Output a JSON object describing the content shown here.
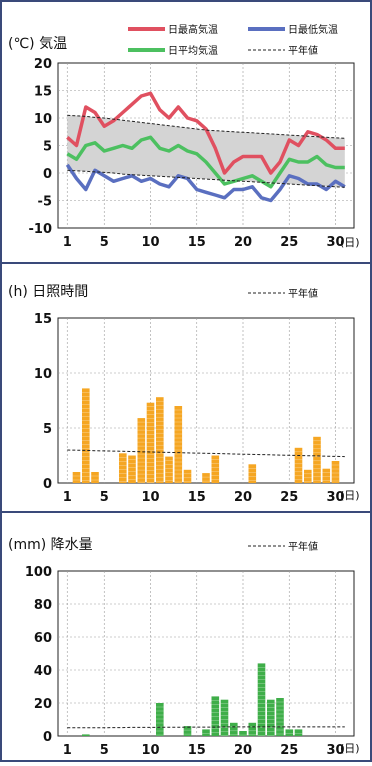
{
  "colors": {
    "frame": "#3a4a7a",
    "max": "#e05060",
    "min": "#5a6fc0",
    "avg": "#4cc060",
    "normal": "#222222",
    "range_fill": "#d4d4d4",
    "sun_bar": "#f5a623",
    "rain_bar": "#3fae49",
    "grid": "#9a9a9a"
  },
  "x_unit": "(日)",
  "chart_data": [
    {
      "type": "line",
      "title": "(℃) 気温",
      "ylim": [
        -10,
        20
      ],
      "yticks": [
        20,
        15,
        10,
        5,
        0,
        -5,
        -10
      ],
      "xticks": [
        1,
        5,
        10,
        15,
        20,
        25,
        30
      ],
      "xlim": [
        0,
        32
      ],
      "legend": [
        "日最高気温",
        "日最低気温",
        "日平均気温",
        "平年値"
      ],
      "x": [
        1,
        2,
        3,
        4,
        5,
        6,
        7,
        8,
        9,
        10,
        11,
        12,
        13,
        14,
        15,
        16,
        17,
        18,
        19,
        20,
        21,
        22,
        23,
        24,
        25,
        26,
        27,
        28,
        29,
        30,
        31
      ],
      "series": [
        {
          "name": "日最高気温",
          "values": [
            6.5,
            5,
            12,
            11,
            8.5,
            9.5,
            11,
            12.5,
            14,
            14.5,
            11.5,
            10,
            12,
            10,
            9.5,
            8,
            4.5,
            0,
            2,
            3,
            3,
            3,
            0,
            2,
            6,
            5,
            7.5,
            7,
            6,
            4.5,
            4.5
          ]
        },
        {
          "name": "日最低気温",
          "values": [
            1.5,
            -1,
            -3,
            0.5,
            -0.5,
            -1.5,
            -1,
            -0.5,
            -1.5,
            -1,
            -2,
            -2.5,
            -0.5,
            -1,
            -3,
            -3.5,
            -4,
            -4.5,
            -3,
            -3,
            -2.5,
            -4.5,
            -5,
            -3,
            -0.5,
            -1,
            -2,
            -2,
            -3,
            -1.5,
            -2.5
          ]
        },
        {
          "name": "日平均気温",
          "values": [
            3.5,
            2.5,
            5,
            5.5,
            4,
            4.5,
            5,
            4.5,
            6,
            6.5,
            4.5,
            4,
            5,
            4,
            3.5,
            2,
            0,
            -2,
            -1.5,
            -1,
            -0.5,
            -1.5,
            -2.5,
            0,
            2.5,
            2,
            2,
            3,
            1.5,
            1,
            1
          ]
        },
        {
          "name": "平年値",
          "values": [
            10.5,
            10.4,
            10.3,
            10.1,
            10.0,
            9.8,
            9.6,
            9.4,
            9.2,
            9.0,
            8.8,
            8.6,
            8.4,
            8.2,
            8.0,
            7.8,
            7.7,
            7.6,
            7.5,
            7.4,
            7.3,
            7.2,
            7.1,
            7.0,
            6.9,
            6.8,
            6.7,
            6.6,
            6.5,
            6.4,
            6.3
          ]
        },
        {
          "name": "平年値",
          "values": [
            0.5,
            0.4,
            0.3,
            0.2,
            0.1,
            0,
            -0.2,
            -0.3,
            -0.4,
            -0.5,
            -0.6,
            -0.7,
            -0.8,
            -0.9,
            -1.0,
            -1.1,
            -1.2,
            -1.3,
            -1.4,
            -1.5,
            -1.6,
            -1.7,
            -1.8,
            -1.9,
            -2.0,
            -2.1,
            -2.2,
            -2.3,
            -2.4,
            -2.5,
            -2.6
          ]
        }
      ]
    },
    {
      "type": "bar",
      "title": "(h) 日照時間",
      "ylim": [
        0,
        15
      ],
      "yticks": [
        15,
        10,
        5,
        0
      ],
      "xticks": [
        1,
        5,
        10,
        15,
        20,
        25,
        30
      ],
      "xlim": [
        0,
        32
      ],
      "legend": [
        "平年値"
      ],
      "x": [
        1,
        2,
        3,
        4,
        5,
        6,
        7,
        8,
        9,
        10,
        11,
        12,
        13,
        14,
        15,
        16,
        17,
        18,
        19,
        20,
        21,
        22,
        23,
        24,
        25,
        26,
        27,
        28,
        29,
        30,
        31
      ],
      "values": [
        0,
        1,
        8.6,
        1,
        0,
        0,
        2.7,
        2.5,
        5.9,
        7.3,
        7.8,
        2.4,
        7,
        1.2,
        0,
        0.9,
        2.5,
        0,
        0,
        0,
        1.7,
        0,
        0,
        0,
        0,
        3.2,
        1.2,
        4.2,
        1.3,
        2,
        0
      ],
      "normal": [
        3,
        2.98,
        2.96,
        2.94,
        2.92,
        2.9,
        2.88,
        2.86,
        2.84,
        2.82,
        2.8,
        2.78,
        2.76,
        2.74,
        2.72,
        2.7,
        2.68,
        2.66,
        2.64,
        2.62,
        2.6,
        2.58,
        2.56,
        2.54,
        2.52,
        2.5,
        2.48,
        2.46,
        2.44,
        2.42,
        2.4
      ]
    },
    {
      "type": "bar",
      "title": "(mm) 降水量",
      "ylim": [
        0,
        100
      ],
      "yticks": [
        100,
        80,
        60,
        40,
        20,
        0
      ],
      "xticks": [
        1,
        5,
        10,
        15,
        20,
        25,
        30
      ],
      "xlim": [
        0,
        32
      ],
      "legend": [
        "平年値"
      ],
      "x": [
        1,
        2,
        3,
        4,
        5,
        6,
        7,
        8,
        9,
        10,
        11,
        12,
        13,
        14,
        15,
        16,
        17,
        18,
        19,
        20,
        21,
        22,
        23,
        24,
        25,
        26,
        27,
        28,
        29,
        30,
        31
      ],
      "values": [
        0,
        0,
        1,
        0,
        0,
        0,
        0,
        0,
        0,
        0,
        20,
        0,
        0,
        6,
        0,
        4,
        24,
        22,
        8,
        3,
        8,
        44,
        22,
        23,
        4,
        4,
        0,
        0,
        0,
        0,
        0
      ],
      "normal": [
        5,
        5,
        5,
        5,
        5,
        5.1,
        5.1,
        5.2,
        5.2,
        5.2,
        5.3,
        5.3,
        5.3,
        5.4,
        5.4,
        5.4,
        5.4,
        5.5,
        5.5,
        5.5,
        5.5,
        5.5,
        5.5,
        5.5,
        5.5,
        5.5,
        5.5,
        5.5,
        5.5,
        5.5,
        5.5
      ]
    }
  ]
}
